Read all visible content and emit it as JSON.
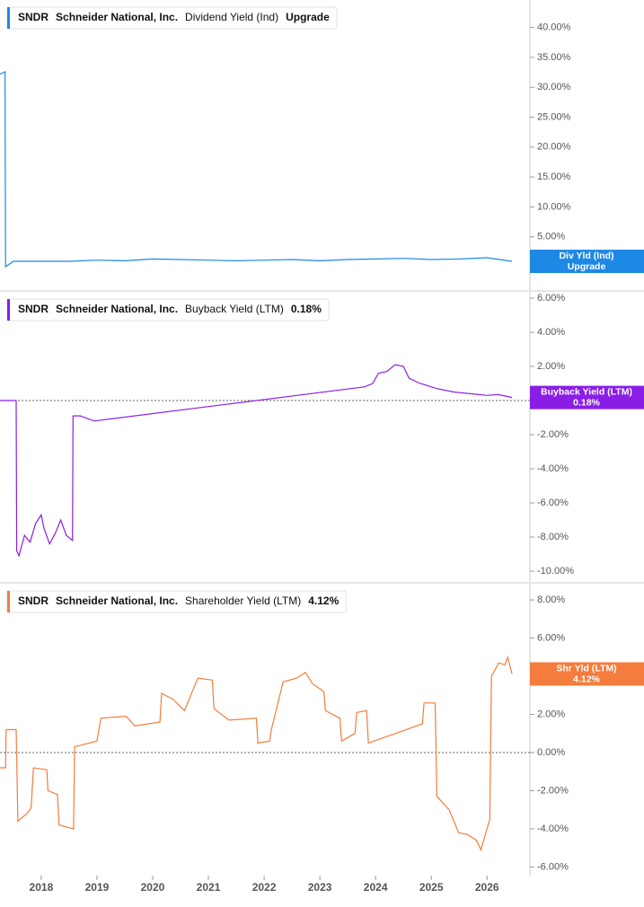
{
  "chart_data": [
    {
      "type": "line",
      "ticker": "SNDR",
      "company": "Schneider National, Inc.",
      "badge": "Div Yld (Ind)",
      "xlim": [
        2017.26,
        2026.77
      ],
      "ylim": [
        -3.9,
        44.6
      ],
      "yticks": [
        {
          "value": 5,
          "label": "5.00%"
        },
        {
          "value": 10,
          "label": "10.00%"
        },
        {
          "value": 15,
          "label": "15.00%"
        },
        {
          "value": 20,
          "label": "20.00%"
        },
        {
          "value": 25,
          "label": "25.00%"
        },
        {
          "value": 30,
          "label": "30.00%"
        },
        {
          "value": 35,
          "label": "35.00%"
        },
        {
          "value": 40,
          "label": "40.00%"
        }
      ],
      "series": [
        {
          "name": "Dividend Yield (Ind)",
          "color": "#1e88e5",
          "value_label": "Upgrade",
          "x": [
            2017.26,
            2017.35,
            2017.36,
            2017.5,
            2018,
            2018.5,
            2019,
            2019.5,
            2020,
            2020.5,
            2021,
            2021.5,
            2022,
            2022.5,
            2023,
            2023.5,
            2024,
            2024.5,
            2025,
            2025.5,
            2026,
            2026.45
          ],
          "values": [
            32.2,
            32.6,
            0,
            0.9,
            0.9,
            0.9,
            1.1,
            1.0,
            1.3,
            1.2,
            1.1,
            1.0,
            1.1,
            1.2,
            1.0,
            1.2,
            1.3,
            1.4,
            1.2,
            1.3,
            1.5,
            0.9
          ]
        }
      ]
    },
    {
      "type": "line",
      "ticker": "SNDR",
      "company": "Schneider National, Inc.",
      "badge": "Buyback Yield (LTM)",
      "xlim": [
        2017.26,
        2026.77
      ],
      "ylim": [
        -10.63,
        6.37
      ],
      "zero_line": true,
      "yticks": [
        {
          "value": -10,
          "label": "-10.00%"
        },
        {
          "value": -8,
          "label": "-8.00%"
        },
        {
          "value": -6,
          "label": "-6.00%"
        },
        {
          "value": -4,
          "label": "-4.00%"
        },
        {
          "value": -2,
          "label": "-2.00%"
        },
        {
          "value": 2,
          "label": "2.00%"
        },
        {
          "value": 4,
          "label": "4.00%"
        },
        {
          "value": 6,
          "label": "6.00%"
        }
      ],
      "series": [
        {
          "name": "Buyback Yield (LTM)",
          "color": "#8a1ee6",
          "value_label": "0.18%",
          "x": [
            2017.26,
            2017.55,
            2017.56,
            2017.6,
            2017.7,
            2017.8,
            2017.9,
            2018.0,
            2018.05,
            2018.15,
            2018.25,
            2018.35,
            2018.45,
            2018.56,
            2018.57,
            2018.7,
            2018.95,
            2023.8,
            2023.95,
            2024.05,
            2024.2,
            2024.35,
            2024.5,
            2024.6,
            2024.8,
            2025.1,
            2025.4,
            2025.7,
            2026.0,
            2026.2,
            2026.45
          ],
          "values": [
            0,
            0,
            -8.8,
            -9.1,
            -7.9,
            -8.3,
            -7.2,
            -6.7,
            -7.5,
            -8.4,
            -7.8,
            -7.0,
            -7.9,
            -8.2,
            -0.9,
            -0.9,
            -1.2,
            0.8,
            1.0,
            1.6,
            1.7,
            2.1,
            2.0,
            1.3,
            1.0,
            0.7,
            0.5,
            0.4,
            0.3,
            0.35,
            0.18
          ]
        }
      ]
    },
    {
      "type": "line",
      "ticker": "SNDR",
      "company": "Schneider National, Inc.",
      "badge": "Shr Yld (LTM)",
      "xlim": [
        2017.26,
        2026.77
      ],
      "ylim": [
        -6.45,
        8.85
      ],
      "zero_line": true,
      "xticks": [
        2018,
        2019,
        2020,
        2021,
        2022,
        2023,
        2024,
        2025,
        2026
      ],
      "yticks": [
        {
          "value": -6,
          "label": "-6.00%"
        },
        {
          "value": -4,
          "label": "-4.00%"
        },
        {
          "value": -2,
          "label": "-2.00%"
        },
        {
          "value": 0,
          "label": "0.00%"
        },
        {
          "value": 2,
          "label": "2.00%"
        },
        {
          "value": 6,
          "label": "6.00%"
        },
        {
          "value": 8,
          "label": "8.00%"
        }
      ],
      "series": [
        {
          "name": "Shareholder Yield (LTM)",
          "color": "#f47c3c",
          "value_label": "4.12%",
          "x": [
            2017.26,
            2017.36,
            2017.37,
            2017.55,
            2017.58,
            2017.74,
            2017.82,
            2017.86,
            2018.1,
            2018.12,
            2018.29,
            2018.32,
            2018.58,
            2018.6,
            2019.0,
            2019.07,
            2019.52,
            2019.68,
            2020.13,
            2020.16,
            2020.36,
            2020.57,
            2020.81,
            2021.07,
            2021.1,
            2021.37,
            2021.86,
            2021.89,
            2022.1,
            2022.13,
            2022.34,
            2022.58,
            2022.74,
            2022.87,
            2023.07,
            2023.1,
            2023.36,
            2023.39,
            2023.63,
            2023.66,
            2023.84,
            2023.87,
            2024.36,
            2024.84,
            2024.87,
            2025.07,
            2025.1,
            2025.32,
            2025.49,
            2025.65,
            2025.81,
            2025.89,
            2026.05,
            2026.08,
            2026.21,
            2026.32,
            2026.37,
            2026.45
          ],
          "values": [
            -0.8,
            -0.8,
            1.2,
            1.2,
            -3.6,
            -3.2,
            -2.9,
            -0.8,
            -0.9,
            -2.0,
            -2.2,
            -3.8,
            -4.0,
            0.3,
            0.6,
            1.8,
            1.9,
            1.4,
            1.6,
            3.1,
            2.8,
            2.2,
            3.9,
            3.8,
            2.3,
            1.7,
            1.8,
            0.5,
            0.6,
            1.2,
            3.7,
            3.9,
            4.2,
            3.6,
            3.2,
            2.2,
            1.8,
            0.6,
            1.0,
            2.1,
            2.2,
            0.5,
            1.0,
            1.5,
            2.6,
            2.6,
            -2.3,
            -3.0,
            -4.2,
            -4.3,
            -4.6,
            -5.1,
            -3.5,
            4.0,
            4.7,
            4.6,
            5.0,
            4.12
          ]
        }
      ]
    }
  ]
}
